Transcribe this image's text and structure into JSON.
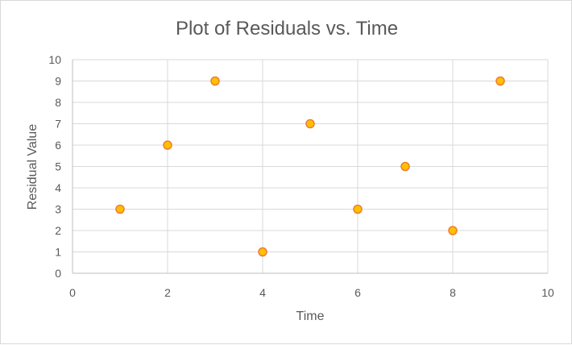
{
  "chart_data": {
    "type": "scatter",
    "title": "Plot of Residuals vs. Time",
    "xlabel": "Time",
    "ylabel": "Residual Value",
    "xlim": [
      0,
      10
    ],
    "ylim": [
      0,
      10
    ],
    "x_ticks": [
      0,
      2,
      4,
      6,
      8,
      10
    ],
    "y_ticks": [
      0,
      1,
      2,
      3,
      4,
      5,
      6,
      7,
      8,
      9,
      10
    ],
    "grid": "vertical-and-horizontal",
    "legend": "none",
    "series": [
      {
        "x": [
          1,
          2,
          3,
          4,
          5,
          6,
          7,
          8,
          9
        ],
        "y": [
          3,
          6,
          9,
          1,
          7,
          3,
          5,
          2,
          9
        ],
        "marker_fill": "#ffc000",
        "marker_stroke": "#ed7d31"
      }
    ]
  }
}
